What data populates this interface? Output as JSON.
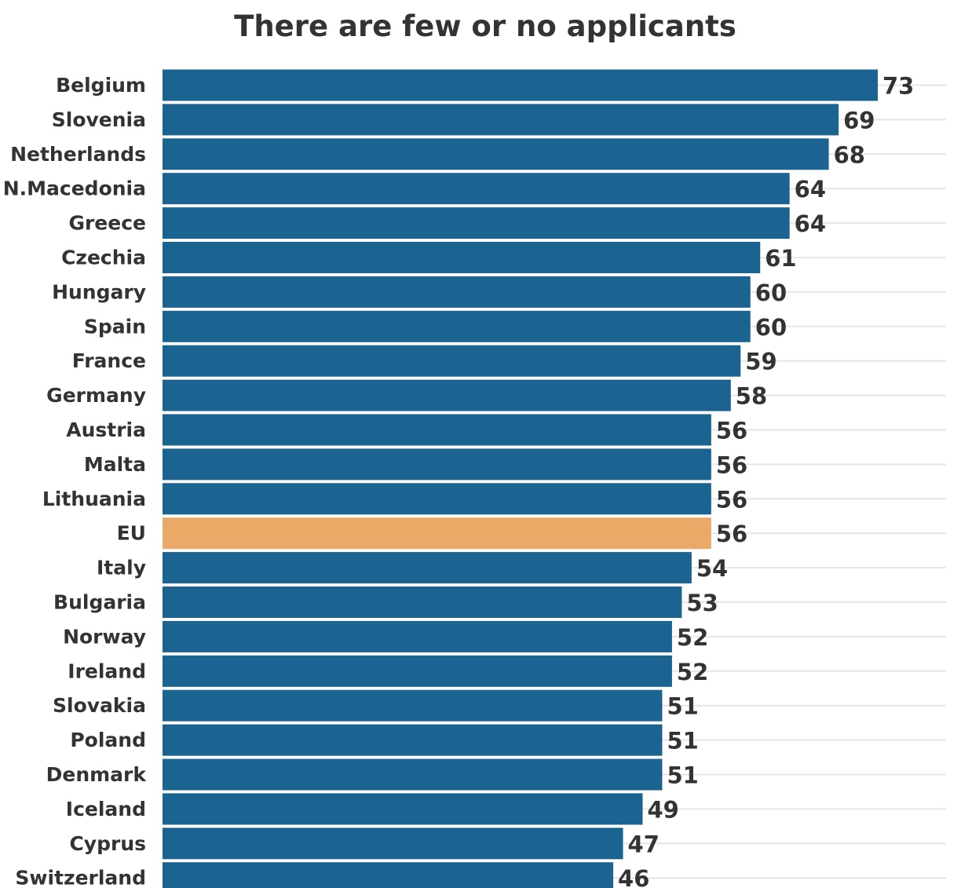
{
  "chart_data": {
    "type": "bar",
    "orientation": "horizontal",
    "title": "There are few or no applicants",
    "xlabel": "",
    "ylabel": "",
    "xlim": [
      0,
      80
    ],
    "grid": true,
    "legend": "none",
    "colors": {
      "bar": "#1b6492",
      "highlight": "#eba968",
      "grid": "#e6e6e6",
      "text": "#333333"
    },
    "highlight_category": "EU",
    "categories": [
      "Belgium",
      "Slovenia",
      "Netherlands",
      "N.Macedonia",
      "Greece",
      "Czechia",
      "Hungary",
      "Spain",
      "France",
      "Germany",
      "Austria",
      "Malta",
      "Lithuania",
      "EU",
      "Italy",
      "Bulgaria",
      "Norway",
      "Ireland",
      "Slovakia",
      "Poland",
      "Denmark",
      "Iceland",
      "Cyprus",
      "Switzerland"
    ],
    "values": [
      73,
      69,
      68,
      64,
      64,
      61,
      60,
      60,
      59,
      58,
      56,
      56,
      56,
      56,
      54,
      53,
      52,
      52,
      51,
      51,
      51,
      49,
      47,
      46
    ]
  }
}
